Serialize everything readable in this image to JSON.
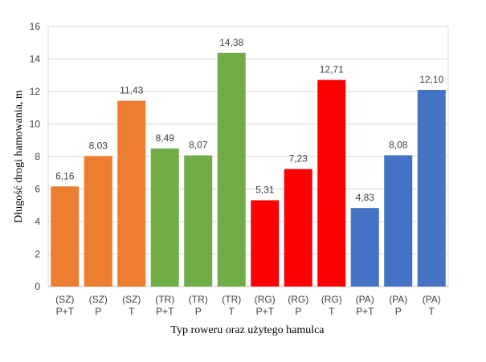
{
  "chart_data": {
    "type": "bar",
    "title": "",
    "xlabel": "Typ roweru oraz użytego  hamulca",
    "ylabel": "Długość  drogi hamowania,  m",
    "ylim": [
      0,
      16
    ],
    "yticks": [
      "0",
      "2",
      "4",
      "6",
      "8",
      "10",
      "12",
      "14",
      "16"
    ],
    "grid": true,
    "legend": "none",
    "categories": [
      [
        "(SZ)",
        "P+T"
      ],
      [
        "(SZ)",
        "P"
      ],
      [
        "(SZ)",
        "T"
      ],
      [
        "(TR)",
        "P+T"
      ],
      [
        "(TR)",
        "P"
      ],
      [
        "(TR)",
        "T"
      ],
      [
        "(RG)",
        "P+T"
      ],
      [
        "(RG)",
        "P"
      ],
      [
        "(RG)",
        "T"
      ],
      [
        "(PA)",
        "P+T"
      ],
      [
        "(PA)",
        "P"
      ],
      [
        "(PA)",
        "T"
      ]
    ],
    "values": [
      6.16,
      8.03,
      11.43,
      8.49,
      8.07,
      14.38,
      5.31,
      7.23,
      12.71,
      4.83,
      8.08,
      12.1
    ],
    "data_labels": [
      "6,16",
      "8,03",
      "11,43",
      "8,49",
      "8,07",
      "14,38",
      "5,31",
      "7,23",
      "12,71",
      "4,83",
      "8,08",
      "12,10"
    ],
    "colors": [
      "#ED7D31",
      "#ED7D31",
      "#ED7D31",
      "#70AD47",
      "#70AD47",
      "#70AD47",
      "#FF0000",
      "#FF0000",
      "#FF0000",
      "#4472C4",
      "#4472C4",
      "#4472C4"
    ]
  }
}
